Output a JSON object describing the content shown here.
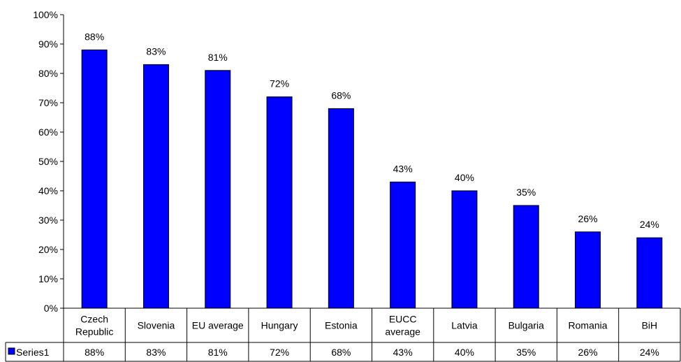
{
  "chart_data": {
    "type": "bar",
    "categories": [
      "Czech Republic",
      "Slovenia",
      "EU average",
      "Hungary",
      "Estonia",
      "EUCC average",
      "Latvia",
      "Bulgaria",
      "Romania",
      "BiH"
    ],
    "category_lines": [
      [
        "Czech",
        "Republic"
      ],
      [
        "Slovenia"
      ],
      [
        "EU average"
      ],
      [
        "Hungary"
      ],
      [
        "Estonia"
      ],
      [
        "EUCC",
        "average"
      ],
      [
        "Latvia"
      ],
      [
        "Bulgaria"
      ],
      [
        "Romania"
      ],
      [
        "BiH"
      ]
    ],
    "series": [
      {
        "name": "Series1",
        "values": [
          88,
          83,
          81,
          72,
          68,
          43,
          40,
          35,
          26,
          24
        ],
        "labels": [
          "88%",
          "83%",
          "81%",
          "72%",
          "68%",
          "43%",
          "40%",
          "35%",
          "26%",
          "24%"
        ],
        "color": "#0000ff"
      }
    ],
    "ylim": [
      0,
      100
    ],
    "yticks": [
      0,
      10,
      20,
      30,
      40,
      50,
      60,
      70,
      80,
      90,
      100
    ],
    "ytick_labels": [
      "0%",
      "10%",
      "20%",
      "30%",
      "40%",
      "50%",
      "60%",
      "70%",
      "80%",
      "90%",
      "100%"
    ],
    "title": "",
    "xlabel": "",
    "ylabel": "",
    "grid": false,
    "legend": "in-data-table",
    "data_table": true
  }
}
